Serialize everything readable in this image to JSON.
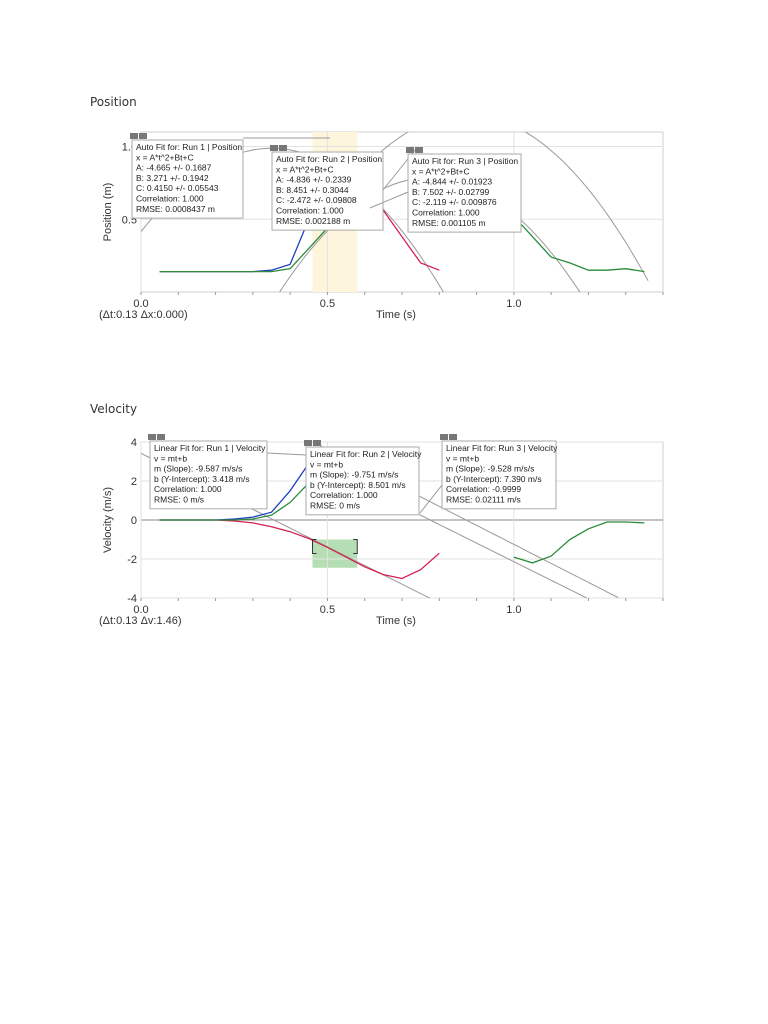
{
  "sections": {
    "position_title": "Position",
    "velocity_title": "Velocity"
  },
  "chart_data": [
    {
      "type": "line",
      "ylabel": "Position (m)",
      "xlabel": "Time (s)",
      "xlim": [
        0.0,
        1.4
      ],
      "ylim": [
        0.0,
        1.1
      ],
      "xticks": [
        {
          "v": 0.0,
          "label": "0.0"
        },
        {
          "v": 0.5,
          "label": "0.5"
        },
        {
          "v": 1.0,
          "label": "1.0"
        }
      ],
      "yticks": [
        {
          "v": 0.5,
          "label": "0.5"
        },
        {
          "v": 1.0,
          "label": "1.0"
        }
      ],
      "delta_readout": "(Δt:0.13 Δx:0.000)",
      "colors": {
        "run1": "#d62050",
        "run2": "#2a8a3a",
        "run3": "#2a8a3a",
        "run1_blue": "#2040c0"
      },
      "selection": {
        "x0": 0.46,
        "x1": 0.58,
        "color": "#fdf5dc"
      },
      "series": [
        {
          "name": "Run 1",
          "color": "#2040c0",
          "x": [
            0.05,
            0.1,
            0.15,
            0.2,
            0.25,
            0.3,
            0.35,
            0.4,
            0.45,
            0.5
          ],
          "y": [
            0.14,
            0.14,
            0.14,
            0.14,
            0.14,
            0.14,
            0.15,
            0.19,
            0.5,
            0.95
          ]
        },
        {
          "name": "Run 1 fall",
          "color": "#d62050",
          "x": [
            0.6,
            0.65,
            0.7,
            0.75,
            0.8
          ],
          "y": [
            0.75,
            0.56,
            0.38,
            0.2,
            0.15
          ]
        },
        {
          "name": "Run 2",
          "color": "#2a8a3a",
          "x": [
            0.05,
            0.1,
            0.15,
            0.2,
            0.25,
            0.3,
            0.35,
            0.4,
            0.45,
            0.5,
            0.55,
            0.6
          ],
          "y": [
            0.14,
            0.14,
            0.14,
            0.14,
            0.14,
            0.14,
            0.14,
            0.16,
            0.3,
            0.44,
            0.56,
            0.75
          ]
        },
        {
          "name": "Run 3",
          "color": "#2a8a3a",
          "x": [
            1.0,
            1.05,
            1.1,
            1.15,
            1.2,
            1.25,
            1.3,
            1.35
          ],
          "y": [
            0.52,
            0.38,
            0.24,
            0.2,
            0.15,
            0.15,
            0.16,
            0.14
          ]
        }
      ],
      "fits": [
        {
          "A": -4.665,
          "B": 3.271,
          "C": 0.415,
          "x0": 0.0,
          "x1": 0.95
        },
        {
          "A": -4.836,
          "B": 8.451,
          "C": -2.472,
          "x0": 0.6,
          "x1": 1.36
        },
        {
          "A": -4.844,
          "B": 7.502,
          "C": -2.119,
          "x0": 0.35,
          "x1": 1.38
        }
      ],
      "boxes": [
        {
          "lines": [
            "Auto Fit for: Run 1 | Position",
            "x = A*t^2+Bt+C",
            "A: -4.665 +/- 0.1687",
            "B: 3.271 +/- 0.1942",
            "C: 0.4150 +/- 0.05543",
            "Correlation: 1.000",
            "RMSE: 0.0008437 m"
          ]
        },
        {
          "lines": [
            "Auto Fit for: Run 2 | Position",
            "x = A*t^2+Bt+C",
            "A: -4.836 +/- 0.2339",
            "B: 8.451 +/- 0.3044",
            "C: -2.472 +/- 0.09808",
            "Correlation: 1.000",
            "RMSE: 0.002188 m"
          ]
        },
        {
          "lines": [
            "Auto Fit for: Run 3 | Position",
            "x = A*t^2+Bt+C",
            "A: -4.844 +/- 0.01923",
            "B: 7.502 +/- 0.02799",
            "C: -2.119 +/- 0.009876",
            "Correlation: 1.000",
            "RMSE: 0.001105 m"
          ]
        }
      ]
    },
    {
      "type": "line",
      "ylabel": "Velocity (m/s)",
      "xlabel": "Time (s)",
      "xlim": [
        0.0,
        1.4
      ],
      "ylim": [
        -4.0,
        4.0
      ],
      "xticks": [
        {
          "v": 0.0,
          "label": "0.0"
        },
        {
          "v": 0.5,
          "label": "0.5"
        },
        {
          "v": 1.0,
          "label": "1.0"
        }
      ],
      "yticks": [
        {
          "v": 4,
          "label": "4"
        },
        {
          "v": 2,
          "label": "2"
        },
        {
          "v": 0,
          "label": "0"
        },
        {
          "v": -2,
          "label": "-2"
        },
        {
          "v": -4,
          "label": "-4"
        }
      ],
      "delta_readout": "(Δt:0.13 Δv:1.46)",
      "selection": {
        "x0": 0.46,
        "x1": 0.58,
        "y0": -2.45,
        "y1": -1.0,
        "color": "#a8d8a8"
      },
      "series": [
        {
          "name": "Run 1",
          "color": "#2040c0",
          "x": [
            0.05,
            0.1,
            0.15,
            0.2,
            0.25,
            0.3,
            0.35,
            0.4,
            0.45
          ],
          "y": [
            0.0,
            0.0,
            0.0,
            0.0,
            0.05,
            0.15,
            0.4,
            1.5,
            2.9
          ]
        },
        {
          "name": "Run 1 fall",
          "color": "#d62050",
          "x": [
            0.05,
            0.1,
            0.15,
            0.2,
            0.25,
            0.3,
            0.35,
            0.4,
            0.45,
            0.5,
            0.55,
            0.6,
            0.65,
            0.7,
            0.75,
            0.8
          ],
          "y": [
            0.0,
            0.0,
            0.0,
            0.0,
            -0.05,
            -0.15,
            -0.35,
            -0.6,
            -0.95,
            -1.4,
            -1.9,
            -2.4,
            -2.8,
            -3.0,
            -2.55,
            -1.7
          ]
        },
        {
          "name": "Run 2",
          "color": "#2a8a3a",
          "x": [
            0.05,
            0.1,
            0.15,
            0.2,
            0.25,
            0.3,
            0.35,
            0.4,
            0.45
          ],
          "y": [
            0.0,
            0.0,
            0.0,
            0.0,
            0.0,
            0.05,
            0.25,
            0.9,
            1.9
          ]
        },
        {
          "name": "Run 3",
          "color": "#2a8a3a",
          "x": [
            1.0,
            1.05,
            1.1,
            1.15,
            1.2,
            1.25,
            1.3,
            1.35
          ],
          "y": [
            -1.9,
            -2.2,
            -1.85,
            -1.0,
            -0.45,
            -0.1,
            -0.1,
            -0.15
          ]
        }
      ],
      "fits": [
        {
          "m": -9.587,
          "b": 3.418,
          "x0": 0.0,
          "x1": 1.0
        },
        {
          "m": -9.751,
          "b": 8.501,
          "x0": 0.45,
          "x1": 1.28
        },
        {
          "m": -9.528,
          "b": 7.39,
          "x0": 0.5,
          "x1": 1.2
        }
      ],
      "boxes": [
        {
          "lines": [
            "Linear Fit for: Run 1 | Velocity",
            "v = mt+b",
            "m (Slope): -9.587 m/s/s",
            "b (Y-Intercept): 3.418 m/s",
            "Correlation: 1.000",
            "RMSE: 0 m/s"
          ]
        },
        {
          "lines": [
            "Linear Fit for: Run 2 | Velocity",
            "v = mt+b",
            "m (Slope): -9.751 m/s/s",
            "b (Y-Intercept): 8.501 m/s",
            "Correlation: 1.000",
            "RMSE: 0 m/s"
          ]
        },
        {
          "lines": [
            "Linear Fit for: Run 3 | Velocity",
            "v = mt+b",
            "m (Slope): -9.528 m/s/s",
            "b (Y-Intercept): 7.390 m/s",
            "Correlation: -0.9999",
            "RMSE: 0.02111 m/s"
          ]
        }
      ]
    }
  ]
}
